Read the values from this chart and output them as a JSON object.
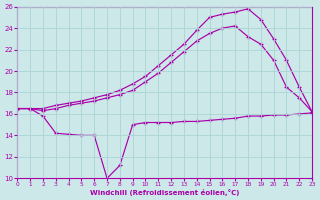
{
  "xlabel": "Windchill (Refroidissement éolien,°C)",
  "bg_color": "#cce8e8",
  "line_color": "#aa00aa",
  "grid_color": "#aad4d4",
  "xmin": 0,
  "xmax": 23,
  "ymin": 10,
  "ymax": 26,
  "ytick_vals": [
    10,
    12,
    14,
    16,
    18,
    20,
    22,
    24,
    26
  ],
  "xtick_vals": [
    0,
    1,
    2,
    3,
    4,
    5,
    6,
    7,
    8,
    9,
    10,
    11,
    12,
    13,
    14,
    15,
    16,
    17,
    18,
    19,
    20,
    21,
    22,
    23
  ],
  "series": [
    {
      "x": [
        0,
        1,
        2,
        3,
        4,
        5,
        6,
        7,
        8,
        9,
        10,
        11,
        12,
        13,
        14,
        15,
        16,
        17,
        18,
        19,
        20,
        21,
        22,
        23
      ],
      "y": [
        16.5,
        16.5,
        15.8,
        14.2,
        14.1,
        14.0,
        14.0,
        10.0,
        11.2,
        15.0,
        15.2,
        15.2,
        15.2,
        15.3,
        15.3,
        15.4,
        15.5,
        15.6,
        15.8,
        15.8,
        15.9,
        15.9,
        16.0,
        16.1
      ]
    },
    {
      "x": [
        0,
        1,
        2,
        3,
        4,
        5,
        6,
        7,
        8,
        9,
        10,
        11,
        12,
        13,
        14,
        15,
        16,
        17,
        18,
        19,
        20,
        21,
        22,
        23
      ],
      "y": [
        16.5,
        16.5,
        16.5,
        16.8,
        17.0,
        17.2,
        17.5,
        17.8,
        18.2,
        18.8,
        19.5,
        20.5,
        21.5,
        22.5,
        23.8,
        25.0,
        25.3,
        25.5,
        25.8,
        24.8,
        23.0,
        21.0,
        18.5,
        16.2
      ]
    },
    {
      "x": [
        0,
        1,
        2,
        3,
        4,
        5,
        6,
        7,
        8,
        9,
        10,
        11,
        12,
        13,
        14,
        15,
        16,
        17,
        18,
        19,
        20,
        21,
        22,
        23
      ],
      "y": [
        16.5,
        16.5,
        16.3,
        16.5,
        16.8,
        17.0,
        17.2,
        17.5,
        17.8,
        18.2,
        19.0,
        19.8,
        20.8,
        21.8,
        22.8,
        23.5,
        24.0,
        24.2,
        23.2,
        22.5,
        21.0,
        18.5,
        17.5,
        16.2
      ]
    }
  ]
}
